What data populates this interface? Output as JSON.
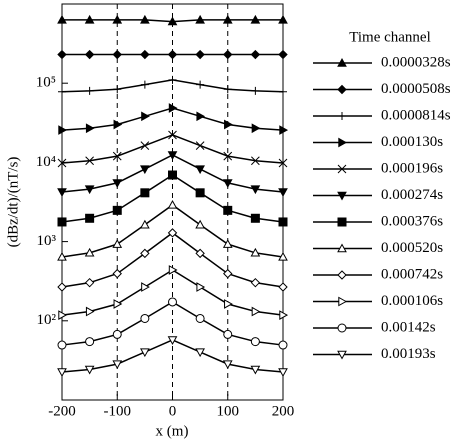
{
  "chart_data": {
    "type": "line",
    "x_label": "x (m)",
    "y_label": "(dBz/dt)/(nT/s)",
    "x": [
      -200,
      -150,
      -100,
      -50,
      0,
      50,
      100,
      150,
      200
    ],
    "xlim": [
      -200,
      200
    ],
    "xticks": [
      -200,
      -100,
      0,
      100,
      200
    ],
    "ylim": [
      10,
      1000000
    ],
    "log_y": true,
    "yticks": [
      {
        "value": 100,
        "label": "10²"
      },
      {
        "value": 1000,
        "label": "10³"
      },
      {
        "value": 10000,
        "label": "10⁴"
      },
      {
        "value": 100000,
        "label": "10⁵"
      }
    ],
    "reference_lines_x": [
      -100,
      0,
      100
    ],
    "legend_title": "Time channel",
    "legend_position": "right",
    "series": [
      {
        "name": "0.0000328s",
        "color": "#000",
        "marker": "triangle",
        "values": [
          630000,
          630000,
          630000,
          630000,
          600000,
          630000,
          630000,
          630000,
          630000
        ]
      },
      {
        "name": "0.0000508s",
        "color": "#000",
        "marker": "diamond",
        "values": [
          230000,
          230000,
          230000,
          230000,
          230000,
          230000,
          230000,
          230000,
          230000
        ]
      },
      {
        "name": "0.0000814s",
        "color": "#000",
        "marker": "plus",
        "values": [
          78000,
          80000,
          84000,
          96000,
          110000,
          96000,
          84000,
          80000,
          78000
        ]
      },
      {
        "name": "0.000130s",
        "color": "#000",
        "marker": "right-triangle",
        "values": [
          25600,
          27000,
          30100,
          38200,
          48600,
          38200,
          30100,
          27000,
          25600
        ]
      },
      {
        "name": "0.000196s",
        "color": "#000",
        "marker": "cross",
        "values": [
          9820,
          10500,
          12000,
          16300,
          22200,
          16300,
          12000,
          10500,
          9820
        ]
      },
      {
        "name": "0.000274s",
        "color": "#000",
        "marker": "down-triangle",
        "values": [
          4230,
          4600,
          5510,
          8240,
          12400,
          8240,
          5510,
          4600,
          4230
        ]
      },
      {
        "name": "0.000376s",
        "color": "#000",
        "marker": "square",
        "values": [
          1770,
          1970,
          2480,
          4130,
          6930,
          4130,
          2480,
          1970,
          1770
        ]
      },
      {
        "name": "0.000520s",
        "color": "#000",
        "marker": "open-triangle",
        "values": [
          640,
          721,
          929,
          1630,
          2900,
          1630,
          929,
          721,
          640
        ]
      },
      {
        "name": "0.000742s",
        "color": "#000",
        "marker": "open-diamond",
        "values": [
          267,
          303,
          394,
          710,
          1290,
          710,
          394,
          303,
          267
        ]
      },
      {
        "name": "0.000106s",
        "color": "#000",
        "marker": "open-right-triangle",
        "values": [
          118,
          131,
          163,
          267,
          438,
          267,
          163,
          131,
          118
        ]
      },
      {
        "name": "0.00142s",
        "color": "#000",
        "marker": "open-circle",
        "values": [
          49.4,
          54.6,
          67.3,
          107,
          173,
          107,
          67.3,
          54.6,
          49.4
        ]
      },
      {
        "name": "0.00193s",
        "color": "#000",
        "marker": "open-down-triangle",
        "values": [
          22.6,
          24.3,
          28.4,
          40.3,
          57.3,
          40.3,
          28.4,
          24.3,
          22.6
        ]
      }
    ]
  }
}
